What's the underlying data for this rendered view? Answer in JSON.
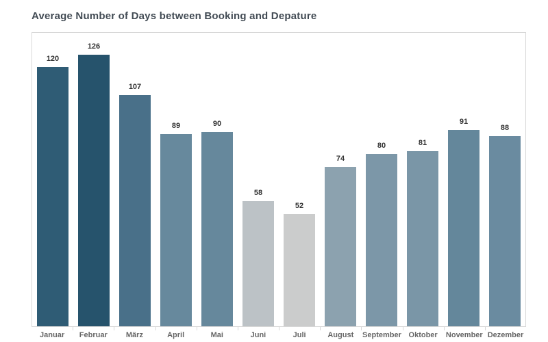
{
  "title": "Average Number of Days between Booking and Depature",
  "colors": {
    "title_text": "#424b54",
    "bar_label_text": "#333333",
    "axis_label_text": "#666666",
    "plot_border": "#d7d7d7",
    "background": "#ffffff"
  },
  "chart_data": {
    "type": "bar",
    "title": "Average Number of Days between Booking and Depature",
    "categories": [
      "Januar",
      "Februar",
      "März",
      "April",
      "Mai",
      "Juni",
      "Juli",
      "August",
      "September",
      "Oktober",
      "November",
      "Dezember"
    ],
    "values": [
      120,
      126,
      107,
      89,
      90,
      58,
      52,
      74,
      80,
      81,
      91,
      88
    ],
    "bar_colors": [
      "#2f5c75",
      "#26536c",
      "#497089",
      "#67899d",
      "#66889c",
      "#bcc2c6",
      "#cbcccc",
      "#8ca2af",
      "#7c97a8",
      "#7a96a7",
      "#64879b",
      "#6a8ba0"
    ],
    "xlabel": "",
    "ylabel": "",
    "ylim": [
      0,
      136
    ],
    "grid": false,
    "legend_position": "none",
    "value_labels": "above-bars",
    "color_encoding": "sequential-by-value (light gray low to dark blue high)"
  }
}
